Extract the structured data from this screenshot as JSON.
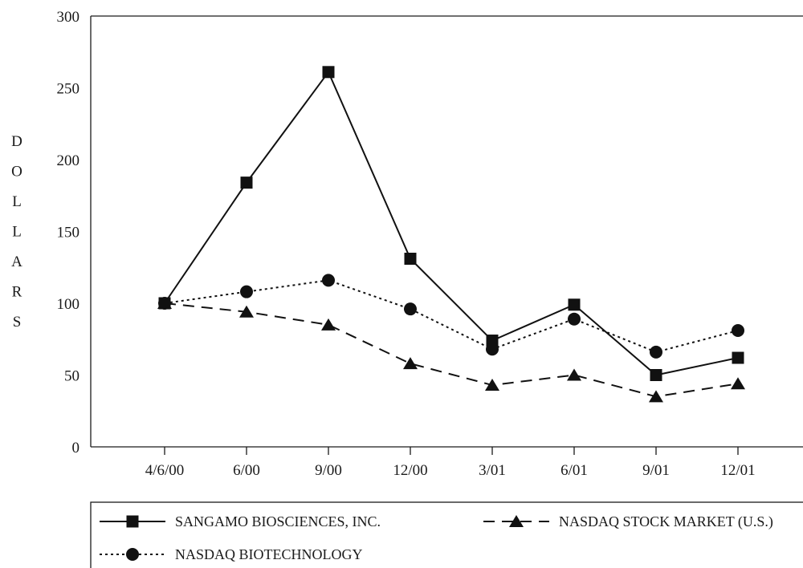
{
  "chart_data": {
    "type": "line",
    "ylabel": "DOLLARS",
    "xlabel": "",
    "ylim": [
      0,
      300
    ],
    "yticks": [
      "0",
      "50",
      "100",
      "150",
      "200",
      "250",
      "300"
    ],
    "categories": [
      "4/6/00",
      "6/00",
      "9/00",
      "12/00",
      "3/01",
      "6/01",
      "9/01",
      "12/01"
    ],
    "grid": false,
    "legend_position": "bottom",
    "series": [
      {
        "name": "SANGAMO BIOSCIENCES, INC.",
        "marker": "square",
        "line_style": "solid",
        "values": [
          100,
          184,
          261,
          131,
          74,
          99,
          50,
          62
        ]
      },
      {
        "name": "NASDAQ STOCK MARKET (U.S.)",
        "marker": "triangle",
        "line_style": "dashed",
        "values": [
          100,
          94,
          85,
          58,
          43,
          50,
          35,
          44
        ]
      },
      {
        "name": "NASDAQ BIOTECHNOLOGY",
        "marker": "circle",
        "line_style": "dotted",
        "values": [
          100,
          108,
          116,
          96,
          68,
          89,
          66,
          81
        ]
      }
    ]
  }
}
